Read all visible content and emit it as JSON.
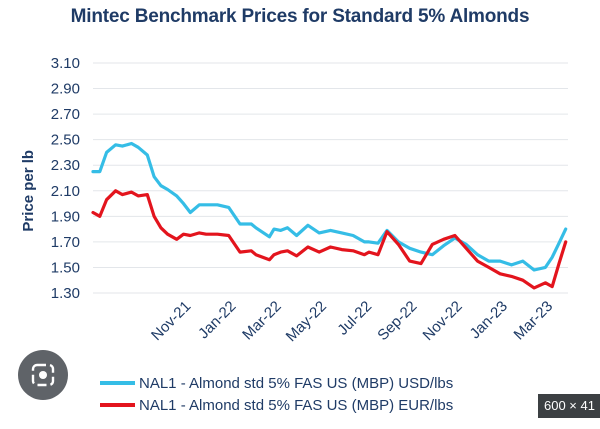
{
  "chart_data": {
    "type": "line",
    "title": "Mintec Benchmark Prices for Standard 5% Almonds",
    "ylabel": "Price per lb",
    "xlabel": "",
    "ylim": [
      1.3,
      3.1
    ],
    "yticks": [
      "3.10",
      "2.90",
      "2.70",
      "2.50",
      "2.30",
      "2.10",
      "1.90",
      "1.70",
      "1.50",
      "1.30"
    ],
    "xticks": [
      "Nov-21",
      "Jan-22",
      "Mar-22",
      "May-22",
      "Jul-22",
      "Sep-22",
      "Nov-22",
      "Jan-23",
      "Mar-23"
    ],
    "xticks_month_index": [
      4,
      6,
      8,
      10,
      12,
      14,
      16,
      18,
      20
    ],
    "x_start": "Jul-21",
    "x_end": "Apr-23",
    "grid": "horizontal",
    "legend_position": "bottom",
    "series": [
      {
        "name": "NAL1 - Almond std 5% FAS US (MBP) USD/lbs",
        "color": "#35bde6",
        "x": [
          0,
          0.3,
          0.6,
          1.0,
          1.3,
          1.7,
          2.0,
          2.4,
          2.7,
          3.0,
          3.3,
          3.7,
          4.0,
          4.3,
          4.7,
          5.0,
          5.5,
          6.0,
          6.5,
          7.0,
          7.2,
          7.8,
          8.0,
          8.3,
          8.6,
          9.0,
          9.5,
          10.0,
          10.5,
          11.0,
          11.5,
          12.0,
          12.2,
          12.6,
          13.0,
          13.5,
          14.0,
          14.5,
          15.0,
          15.5,
          16.0,
          16.5,
          17.0,
          17.5,
          18.0,
          18.5,
          19.0,
          19.5,
          20.0,
          20.3,
          20.6,
          20.9
        ],
        "y": [
          2.25,
          2.25,
          2.4,
          2.46,
          2.45,
          2.47,
          2.44,
          2.38,
          2.21,
          2.14,
          2.11,
          2.06,
          2.0,
          1.93,
          1.99,
          1.99,
          1.99,
          1.97,
          1.84,
          1.84,
          1.81,
          1.74,
          1.8,
          1.79,
          1.81,
          1.75,
          1.83,
          1.77,
          1.79,
          1.77,
          1.75,
          1.7,
          1.7,
          1.69,
          1.79,
          1.7,
          1.65,
          1.62,
          1.6,
          1.67,
          1.73,
          1.68,
          1.6,
          1.55,
          1.55,
          1.52,
          1.55,
          1.48,
          1.5,
          1.58,
          1.69,
          1.8
        ]
      },
      {
        "name": "NAL1 - Almond std 5% FAS US (MBP) EUR/lbs",
        "color": "#e3141d",
        "x": [
          0,
          0.3,
          0.6,
          1.0,
          1.3,
          1.7,
          2.0,
          2.4,
          2.7,
          3.0,
          3.3,
          3.7,
          4.0,
          4.3,
          4.7,
          5.0,
          5.5,
          6.0,
          6.5,
          7.0,
          7.2,
          7.8,
          8.0,
          8.3,
          8.6,
          9.0,
          9.5,
          10.0,
          10.5,
          11.0,
          11.5,
          12.0,
          12.2,
          12.6,
          13.0,
          13.5,
          14.0,
          14.5,
          15.0,
          15.5,
          16.0,
          16.5,
          17.0,
          17.5,
          18.0,
          18.5,
          19.0,
          19.5,
          20.0,
          20.3,
          20.6,
          20.9
        ],
        "y": [
          1.93,
          1.9,
          2.03,
          2.1,
          2.07,
          2.09,
          2.06,
          2.07,
          1.9,
          1.81,
          1.76,
          1.72,
          1.76,
          1.75,
          1.77,
          1.76,
          1.76,
          1.75,
          1.62,
          1.63,
          1.6,
          1.56,
          1.6,
          1.62,
          1.63,
          1.59,
          1.66,
          1.62,
          1.66,
          1.64,
          1.63,
          1.6,
          1.62,
          1.6,
          1.78,
          1.68,
          1.55,
          1.53,
          1.68,
          1.72,
          1.75,
          1.65,
          1.55,
          1.5,
          1.45,
          1.43,
          1.4,
          1.34,
          1.38,
          1.35,
          1.53,
          1.7
        ]
      }
    ]
  },
  "ui": {
    "image_size_badge": "600 × 41"
  }
}
